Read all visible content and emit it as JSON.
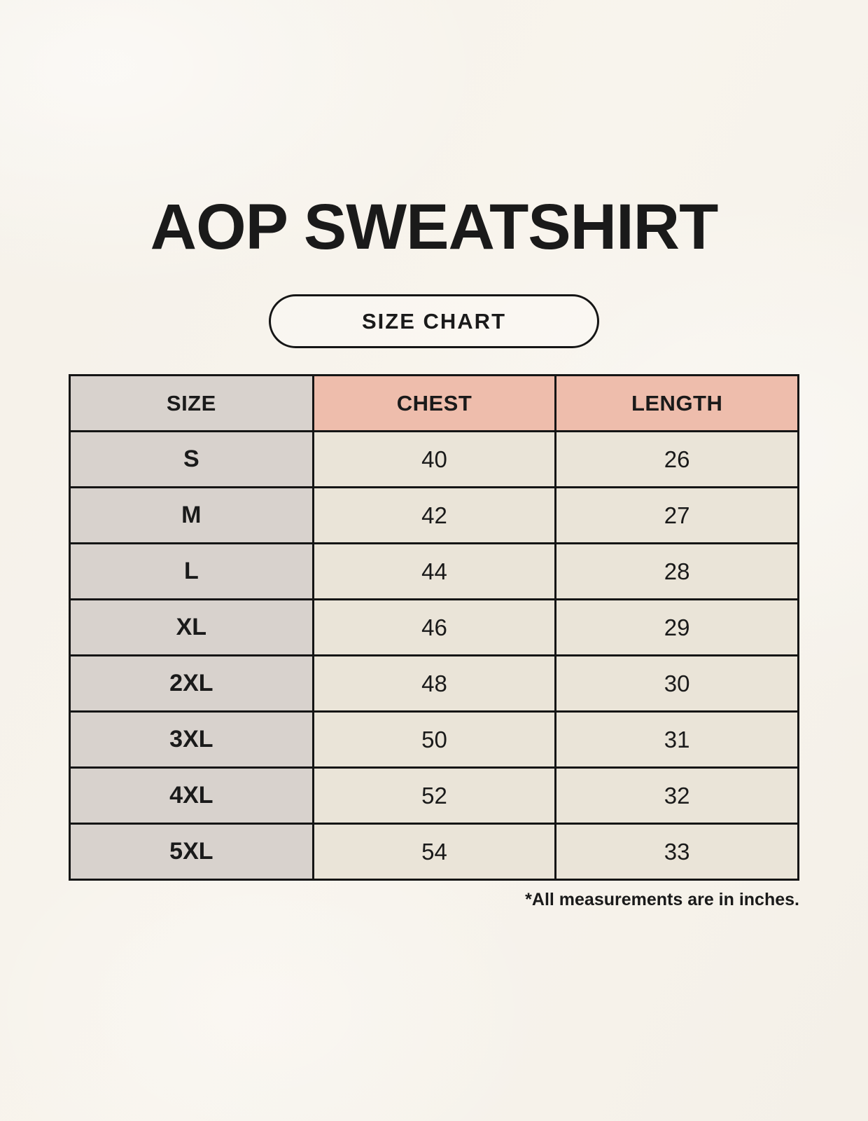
{
  "page": {
    "title": "AOP SWEATSHIRT",
    "size_chart_label": "SIZE CHART",
    "footnote": "*All measurements are in inches."
  },
  "colors": {
    "background": "#f7f3ec",
    "accent_salmon": "#eebdac",
    "grey_cell": "#d8d2cd",
    "cream_cell": "#eae4d8",
    "border": "#151515",
    "text": "#1a1a1a"
  },
  "table": {
    "headers": [
      "SIZE",
      "CHEST",
      "LENGTH"
    ],
    "rows": [
      [
        "S",
        "40",
        "26"
      ],
      [
        "M",
        "42",
        "27"
      ],
      [
        "L",
        "44",
        "28"
      ],
      [
        "XL",
        "46",
        "29"
      ],
      [
        "2XL",
        "48",
        "30"
      ],
      [
        "3XL",
        "50",
        "31"
      ],
      [
        "4XL",
        "52",
        "32"
      ],
      [
        "5XL",
        "54",
        "33"
      ]
    ]
  },
  "chart_data": {
    "type": "table",
    "title": "AOP SWEATSHIRT",
    "subtitle": "SIZE CHART",
    "columns": [
      "SIZE",
      "CHEST",
      "LENGTH"
    ],
    "rows": [
      {
        "size": "S",
        "chest": 40,
        "length": 26
      },
      {
        "size": "M",
        "chest": 42,
        "length": 27
      },
      {
        "size": "L",
        "chest": 44,
        "length": 28
      },
      {
        "size": "XL",
        "chest": 46,
        "length": 29
      },
      {
        "size": "2XL",
        "chest": 48,
        "length": 30
      },
      {
        "size": "3XL",
        "chest": 50,
        "length": 31
      },
      {
        "size": "4XL",
        "chest": 52,
        "length": 32
      },
      {
        "size": "5XL",
        "chest": 54,
        "length": 33
      }
    ],
    "units": "inches",
    "note": "*All measurements are in inches."
  }
}
